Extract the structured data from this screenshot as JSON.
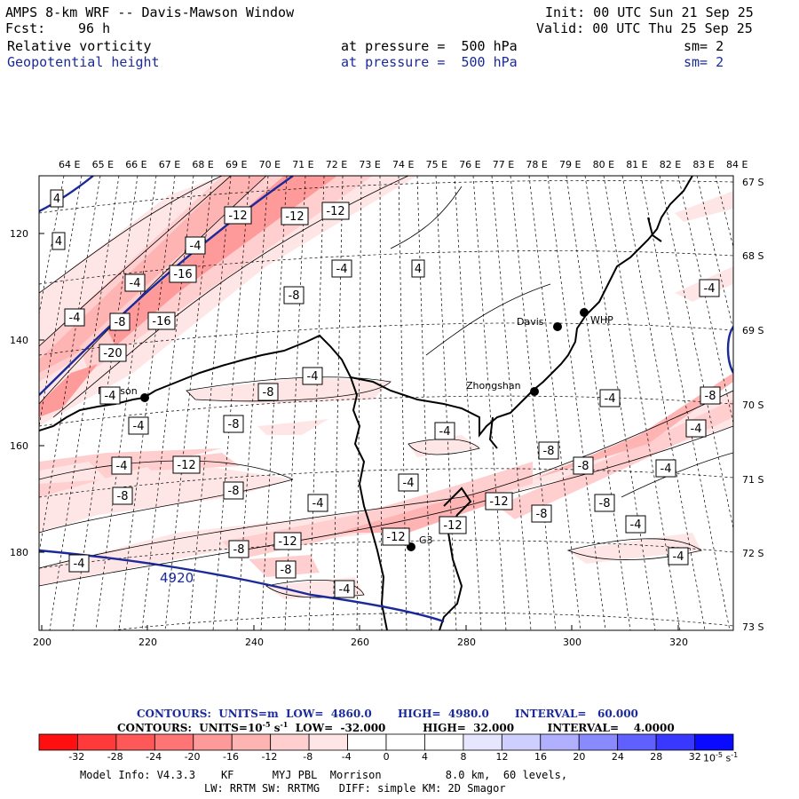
{
  "header": {
    "title": "AMPS 8-km WRF -- Davis-Mawson Window",
    "init": "Init: 00 UTC Sun 21 Sep 25",
    "fcst_label": "Fcst:",
    "fcst_value": "96 h",
    "valid": "Valid: 00 UTC Thu 25 Sep 25",
    "field1": {
      "name": "Relative vorticity",
      "level": "at pressure =  500 hPa",
      "smooth": "sm= 2"
    },
    "field2": {
      "name": "Geopotential height",
      "level": "at pressure =  500 hPa",
      "smooth": "sm= 2"
    }
  },
  "map": {
    "top_lon_labels": [
      "64 E",
      "65 E",
      "66 E",
      "67 E",
      "68 E",
      "69 E",
      "70 E",
      "71 E",
      "72 E",
      "73 E",
      "74 E",
      "75 E",
      "76 E",
      "77 E",
      "78 E",
      "79 E",
      "80 E",
      "81 E",
      "82 E",
      "83 E",
      "84 E"
    ],
    "right_lat_labels": [
      "67 S",
      "68 S",
      "69 S",
      "70 S",
      "71 S",
      "72 S",
      "73 S"
    ],
    "left_y_labels": [
      "120",
      "140",
      "160",
      "180"
    ],
    "bottom_x_labels": [
      "200",
      "220",
      "240",
      "260",
      "280",
      "300",
      "320"
    ],
    "stations": [
      {
        "name": "Mawson"
      },
      {
        "name": "Davis"
      },
      {
        "name": "WHP"
      },
      {
        "name": "Zhongshan"
      },
      {
        "name": "G3"
      }
    ],
    "contour_labels": [
      "4",
      "4",
      "-4",
      "-4",
      "-8",
      "-16",
      "-4",
      "-20",
      "-16",
      "-12",
      "-12",
      "-12",
      "-4",
      "-8",
      "4",
      "-4",
      "-8",
      "-4",
      "-4",
      "-8",
      "-12",
      "-4",
      "-8",
      "-8",
      "-4",
      "-12",
      "-8",
      "-4",
      "-12",
      "-8",
      "-4",
      "-4",
      "-12",
      "-8",
      "-12",
      "-4",
      "-4",
      "-8",
      "-8",
      "-8",
      "-4",
      "-4",
      "-4",
      "-8",
      "-4",
      "-4"
    ],
    "height_label": "4920",
    "colors": {
      "height_contour": "#1a2a9a",
      "coast": "#000000",
      "graticule": "#000000"
    }
  },
  "contours": {
    "line1": "CONTOURS:  UNITS=m  LOW=  4860.0       HIGH=  4980.0       INTERVAL=   60.000",
    "line2_pre": "CONTOURS:  UNITS=10",
    "line2_sup": "-5",
    "line2_mid": " s",
    "line2_sup2": "-1",
    "line2_post": "  LOW=  -32.000          HIGH=  32.000         INTERVAL=    4.0000"
  },
  "colorbar": {
    "ticks": [
      "-32",
      "-28",
      "-24",
      "-20",
      "-16",
      "-12",
      "-8",
      "-4",
      "0",
      "4",
      "8",
      "12",
      "16",
      "20",
      "24",
      "28",
      "32"
    ],
    "units": "10",
    "units_sup": "-5",
    "units_s": " s",
    "units_sup2": "-1",
    "colors": [
      "#ff1010",
      "#ff3a3a",
      "#ff5858",
      "#ff7575",
      "#ff9a9a",
      "#ffb4b4",
      "#ffcfcf",
      "#ffe6e6",
      "#ffffff",
      "#ffffff",
      "#e6e6ff",
      "#cfcfff",
      "#b0b0ff",
      "#8a8aff",
      "#6060ff",
      "#3838ff",
      "#0a0aff"
    ]
  },
  "footer": {
    "line1": "Model Info: V4.3.3    KF      MYJ PBL  Morrison          8.0 km,  60 levels,",
    "line2": "LW: RRTM SW: RRTMG   DIFF: simple KM: 2D Smagor"
  }
}
